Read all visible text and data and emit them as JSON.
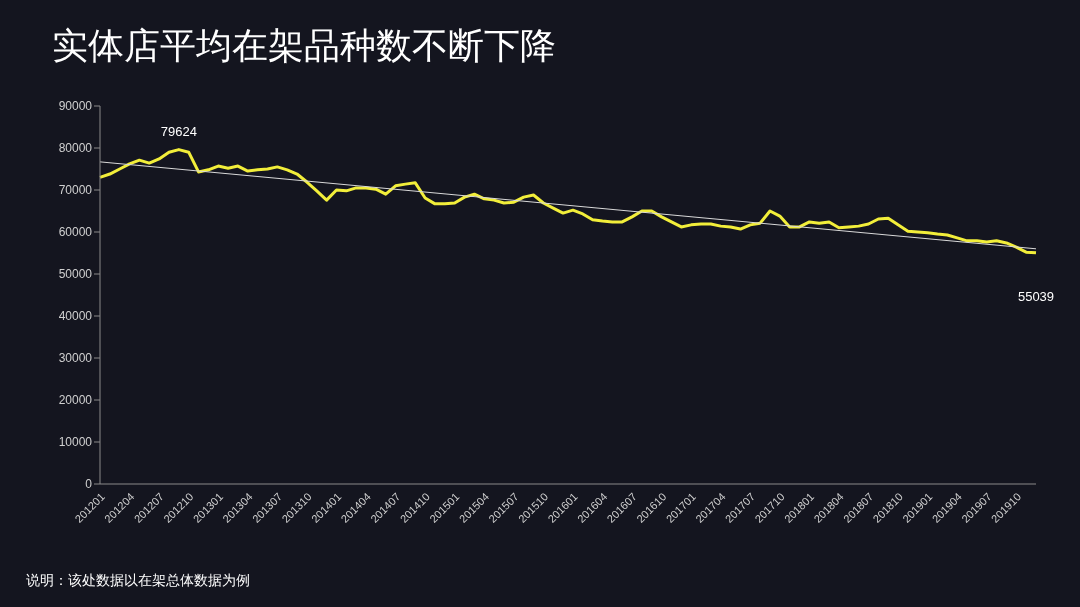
{
  "chart_data": {
    "type": "line",
    "title": "实体店平均在架品种数不断下降",
    "categories": [
      "201201",
      null,
      null,
      "201204",
      null,
      null,
      "201207",
      null,
      null,
      "201210",
      null,
      null,
      "201301",
      null,
      null,
      "201304",
      null,
      null,
      "201307",
      null,
      null,
      "201310",
      null,
      null,
      "201401",
      null,
      null,
      "201404",
      null,
      null,
      "201407",
      null,
      null,
      "201410",
      null,
      null,
      "201501",
      null,
      null,
      "201504",
      null,
      null,
      "201507",
      null,
      null,
      "201510",
      null,
      null,
      "201601",
      null,
      null,
      "201604",
      null,
      null,
      "201607",
      null,
      null,
      "201610",
      null,
      null,
      "201701",
      null,
      null,
      "201704",
      null,
      null,
      "201707",
      null,
      null,
      "201710",
      null,
      null,
      "201801",
      null,
      null,
      "201804",
      null,
      null,
      "201807",
      null,
      null,
      "201810",
      null,
      null,
      "201901",
      null,
      null,
      "201904",
      null,
      null,
      "201907",
      null,
      null,
      "201910",
      null,
      null
    ],
    "series": [
      {
        "color": "#f2ee3a",
        "values": [
          73000,
          73800,
          75000,
          76200,
          77100,
          76400,
          77400,
          79000,
          79624,
          79000,
          74300,
          74800,
          75700,
          75200,
          75700,
          74500,
          74800,
          75000,
          75500,
          74800,
          73800,
          71900,
          69800,
          67600,
          70000,
          69800,
          70500,
          70500,
          70200,
          69000,
          71000,
          71400,
          71700,
          68100,
          66700,
          66700,
          66900,
          68300,
          69000,
          67900,
          67600,
          66900,
          67100,
          68300,
          68800,
          66900,
          65700,
          64500,
          65200,
          64300,
          62900,
          62600,
          62400,
          62400,
          63600,
          65000,
          65000,
          63600,
          62400,
          61200,
          61700,
          61900,
          61900,
          61400,
          61200,
          60700,
          61700,
          62100,
          65000,
          63800,
          61200,
          61200,
          62400,
          62100,
          62400,
          61000,
          61200,
          61400,
          61900,
          63100,
          63300,
          61700,
          60200,
          60000,
          59800,
          59500,
          59300,
          58600,
          57900,
          57900,
          57600,
          57900,
          57400,
          56400,
          55200,
          55039
        ],
        "value_labels": [
          null,
          null,
          null,
          null,
          null,
          null,
          null,
          null,
          "79624",
          null,
          null,
          null,
          null,
          null,
          null,
          null,
          null,
          null,
          null,
          null,
          null,
          null,
          null,
          null,
          null,
          null,
          null,
          null,
          null,
          null,
          null,
          null,
          null,
          null,
          null,
          null,
          null,
          null,
          null,
          null,
          null,
          null,
          null,
          null,
          null,
          null,
          null,
          null,
          null,
          null,
          null,
          null,
          null,
          null,
          null,
          null,
          null,
          null,
          null,
          null,
          null,
          null,
          null,
          null,
          null,
          null,
          null,
          null,
          null,
          null,
          null,
          null,
          null,
          null,
          null,
          null,
          null,
          null,
          null,
          null,
          null,
          null,
          null,
          null,
          null,
          null,
          null,
          null,
          null,
          null,
          null,
          null,
          null,
          null,
          null,
          "55039"
        ]
      },
      {
        "color": "#d9d9d9",
        "values": [
          76700,
          null,
          null,
          null,
          null,
          null,
          null,
          null,
          null,
          null,
          null,
          null,
          null,
          null,
          null,
          null,
          null,
          null,
          null,
          null,
          null,
          null,
          null,
          null,
          null,
          null,
          null,
          null,
          null,
          null,
          null,
          null,
          null,
          null,
          null,
          null,
          null,
          null,
          null,
          null,
          null,
          null,
          null,
          null,
          null,
          null,
          null,
          null,
          null,
          null,
          null,
          null,
          null,
          null,
          null,
          null,
          null,
          null,
          null,
          null,
          null,
          null,
          null,
          null,
          null,
          null,
          null,
          null,
          null,
          null,
          null,
          null,
          null,
          null,
          null,
          null,
          null,
          null,
          null,
          null,
          null,
          null,
          null,
          null,
          null,
          null,
          null,
          null,
          null,
          null,
          null,
          null,
          null,
          null,
          null,
          56000
        ]
      }
    ],
    "ylim": [
      0,
      90000
    ],
    "yticks": [
      0,
      10000,
      20000,
      30000,
      40000,
      50000,
      60000,
      70000,
      80000,
      90000
    ],
    "marker": "none",
    "line_style": "solid",
    "annotations": [
      "说明：该处数据以在架总体数据为例"
    ]
  }
}
